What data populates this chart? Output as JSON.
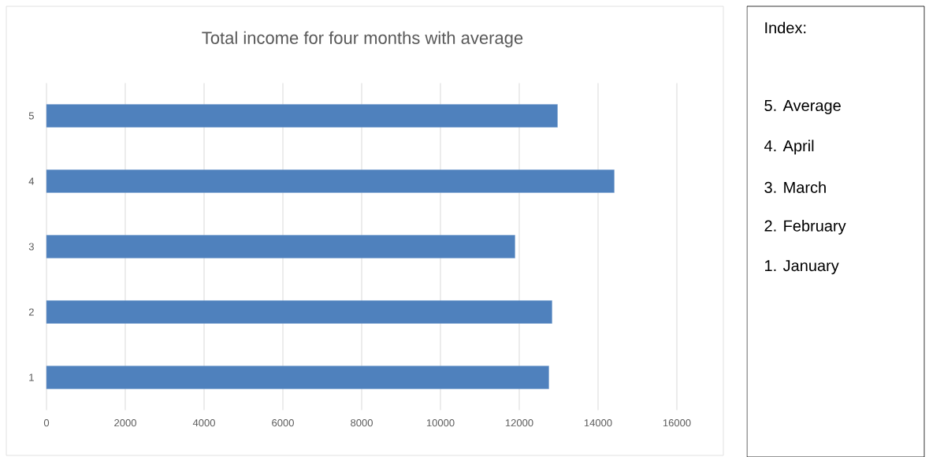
{
  "chart_data": {
    "type": "bar",
    "orientation": "horizontal",
    "title": "Total income for four months with average",
    "categories": [
      "5",
      "4",
      "3",
      "2",
      "1"
    ],
    "values": [
      12970,
      14410,
      11890,
      12830,
      12750
    ],
    "color": "#4f81bd",
    "xlim": [
      0,
      16000
    ],
    "xticks": [
      0,
      2000,
      4000,
      6000,
      8000,
      10000,
      12000,
      14000,
      16000
    ],
    "grid": "x",
    "annotations": [
      "Index:",
      "5. Average",
      "4. April",
      "3. March",
      "2. February",
      "1. January"
    ]
  }
}
